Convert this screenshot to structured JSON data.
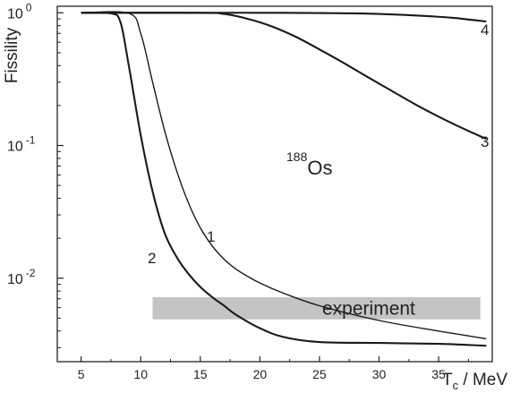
{
  "chart_data": {
    "type": "line",
    "title": "",
    "ylabel": "Fissility",
    "xlabel_main": "T",
    "xlabel_sub": "c",
    "xlabel_unit": " / MeV",
    "xlim": [
      3,
      39.5
    ],
    "ylim": [
      0.00235,
      1.12
    ],
    "yscale": "log",
    "grid": false,
    "x_ticks": [
      5,
      10,
      15,
      20,
      25,
      30,
      35
    ],
    "x_tick_labels": [
      "5",
      "10",
      "15",
      "20",
      "25",
      "30",
      "35"
    ],
    "y_ticks": [
      {
        "value": 1,
        "base": "10",
        "exp": "0"
      },
      {
        "value": 0.1,
        "base": "10",
        "exp": "-1"
      },
      {
        "value": 0.01,
        "base": "10",
        "exp": "-2"
      }
    ],
    "annotation": {
      "mass": "188",
      "element": "Os"
    },
    "experiment_band": {
      "label": "experiment",
      "x": [
        11,
        38.5
      ],
      "y": [
        0.0049,
        0.0072
      ]
    },
    "series": [
      {
        "label": "1",
        "x": [
          5,
          9,
          10,
          11,
          12,
          13,
          14,
          15,
          16,
          17,
          18,
          19,
          20,
          22,
          25,
          30,
          35,
          39
        ],
        "y": [
          1,
          0.99,
          0.7,
          0.3,
          0.13,
          0.065,
          0.037,
          0.024,
          0.0175,
          0.0139,
          0.0117,
          0.0103,
          0.0092,
          0.0077,
          0.0062,
          0.0048,
          0.004,
          0.0035
        ]
      },
      {
        "label": "2",
        "x": [
          5,
          7.5,
          8.3,
          9,
          10,
          11,
          12,
          13,
          14,
          15,
          16,
          17,
          18,
          20,
          22,
          25,
          30,
          35,
          39
        ],
        "y": [
          1,
          0.99,
          0.85,
          0.4,
          0.12,
          0.045,
          0.022,
          0.0145,
          0.0108,
          0.0086,
          0.0072,
          0.0062,
          0.0053,
          0.0042,
          0.0036,
          0.0033,
          0.00325,
          0.0032,
          0.0031
        ]
      },
      {
        "label": "3",
        "x": [
          5,
          15,
          17,
          19,
          21,
          23,
          25,
          27,
          29,
          31,
          33,
          35,
          37,
          39
        ],
        "y": [
          1,
          1,
          0.98,
          0.9,
          0.79,
          0.66,
          0.53,
          0.42,
          0.33,
          0.26,
          0.205,
          0.165,
          0.135,
          0.112
        ]
      },
      {
        "label": "4",
        "x": [
          5,
          15,
          20,
          25,
          28,
          30,
          32,
          34,
          36,
          37.5,
          39
        ],
        "y": [
          1,
          1,
          1,
          0.995,
          0.99,
          0.98,
          0.965,
          0.945,
          0.92,
          0.89,
          0.86
        ]
      }
    ]
  }
}
